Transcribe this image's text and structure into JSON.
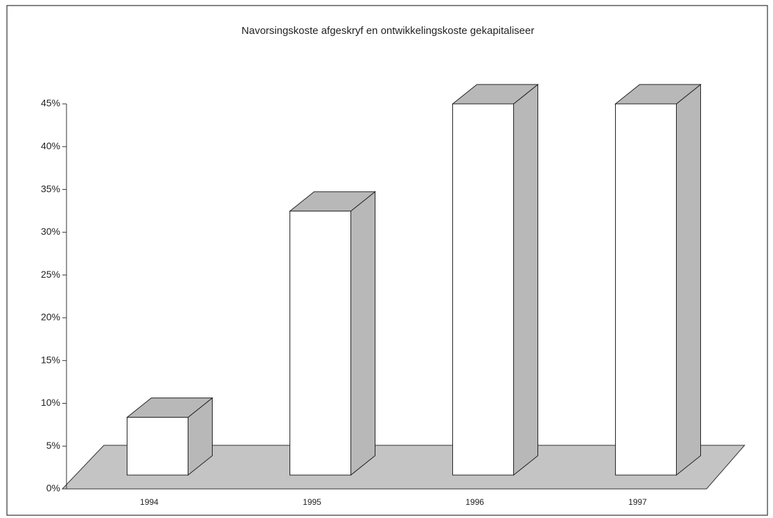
{
  "chart_data": {
    "type": "bar3d",
    "title": "Navorsingskoste afgeskryf en ontwikkelingskoste gekapitaliseer",
    "categories": [
      "1994",
      "1995",
      "1996",
      "1997"
    ],
    "values": [
      7,
      32,
      45,
      45
    ],
    "color": "#ffffff",
    "shade_color": "#b8b8b8",
    "floor_color": "#c4c4c4",
    "ylim": [
      0,
      45
    ],
    "yticks": [
      {
        "value": 0,
        "label": "0%"
      },
      {
        "value": 5,
        "label": "5%"
      },
      {
        "value": 10,
        "label": "10%"
      },
      {
        "value": 15,
        "label": "15%"
      },
      {
        "value": 20,
        "label": "20%"
      },
      {
        "value": 25,
        "label": "25%"
      },
      {
        "value": 30,
        "label": "30%"
      },
      {
        "value": 35,
        "label": "35%"
      },
      {
        "value": 40,
        "label": "40%"
      },
      {
        "value": 45,
        "label": "45%"
      }
    ]
  }
}
